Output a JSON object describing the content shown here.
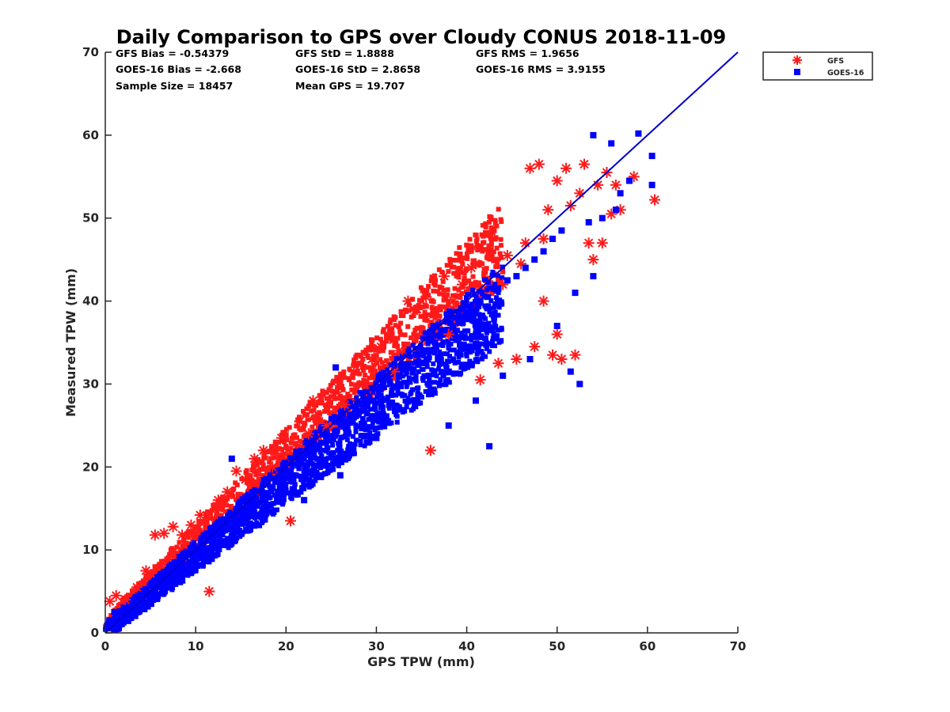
{
  "chart_data": {
    "type": "scatter",
    "title": "Daily Comparison to GPS over Cloudy CONUS 2018-11-09",
    "xlabel": "GPS TPW (mm)",
    "ylabel": "Measured TPW (mm)",
    "xlim": [
      0,
      70
    ],
    "ylim": [
      0,
      70
    ],
    "xticks": [
      0,
      10,
      20,
      30,
      40,
      50,
      60,
      70
    ],
    "yticks": [
      0,
      10,
      20,
      30,
      40,
      50,
      60,
      70
    ],
    "grid": false,
    "legend_placement": "outside-top-right",
    "stats": [
      [
        "GFS Bias = -0.54379",
        "GFS StD = 1.8888",
        "GFS RMS = 1.9656"
      ],
      [
        "GOES-16 Bias = -2.668",
        "GOES-16 StD = 2.8658",
        "GOES-16 RMS = 3.9155"
      ],
      [
        "Sample Size = 18457",
        "Mean GPS = 19.707"
      ]
    ],
    "reference_line": {
      "x": [
        0,
        70
      ],
      "y": [
        0,
        70
      ],
      "color": "#0000cc"
    },
    "series": [
      {
        "name": "GFS",
        "marker": "asterisk",
        "color": "#ff1a1a",
        "points": [
          [
            0.5,
            3.8
          ],
          [
            1.2,
            4.5
          ],
          [
            2.2,
            4.0
          ],
          [
            3.5,
            5.5
          ],
          [
            4.5,
            7.5
          ],
          [
            5.5,
            11.8
          ],
          [
            6.5,
            12.0
          ],
          [
            7.5,
            12.8
          ],
          [
            8.5,
            11.8
          ],
          [
            9.5,
            13.0
          ],
          [
            10.5,
            14.2
          ],
          [
            11.5,
            5.0
          ],
          [
            12.5,
            16.0
          ],
          [
            13.5,
            17.0
          ],
          [
            14.5,
            19.5
          ],
          [
            15.5,
            18.5
          ],
          [
            16.5,
            21.0
          ],
          [
            17.5,
            22.0
          ],
          [
            18.5,
            20.0
          ],
          [
            19.5,
            23.5
          ],
          [
            20.5,
            13.5
          ],
          [
            21.5,
            25.5
          ],
          [
            22.5,
            24.0
          ],
          [
            23.0,
            28.0
          ],
          [
            24.5,
            25.0
          ],
          [
            25.5,
            29.0
          ],
          [
            26.5,
            27.5
          ],
          [
            27.5,
            31.5
          ],
          [
            28.5,
            30.0
          ],
          [
            29.5,
            33.0
          ],
          [
            30.5,
            34.5
          ],
          [
            31.5,
            35.5
          ],
          [
            32.5,
            34.0
          ],
          [
            33.5,
            40.0
          ],
          [
            34.5,
            39.0
          ],
          [
            35.5,
            40.5
          ],
          [
            36.5,
            38.0
          ],
          [
            37.5,
            43.0
          ],
          [
            38.5,
            40.0
          ],
          [
            39.5,
            42.0
          ],
          [
            40.5,
            44.0
          ],
          [
            41.0,
            44.5
          ],
          [
            41.5,
            30.5
          ],
          [
            42.5,
            46.0
          ],
          [
            43.5,
            32.5
          ],
          [
            44.5,
            45.5
          ],
          [
            45.5,
            33.0
          ],
          [
            46.5,
            47.0
          ],
          [
            47.0,
            56.0
          ],
          [
            47.5,
            34.5
          ],
          [
            48.0,
            56.5
          ],
          [
            48.5,
            47.5
          ],
          [
            49.0,
            51.0
          ],
          [
            49.5,
            33.5
          ],
          [
            50.0,
            54.5
          ],
          [
            50.5,
            33.0
          ],
          [
            51.0,
            56.0
          ],
          [
            51.5,
            51.5
          ],
          [
            52.0,
            33.5
          ],
          [
            52.5,
            53.0
          ],
          [
            53.0,
            56.5
          ],
          [
            53.5,
            47.0
          ],
          [
            54.0,
            45.0
          ],
          [
            54.5,
            54.0
          ],
          [
            55.0,
            47.0
          ],
          [
            55.5,
            55.5
          ],
          [
            56.0,
            50.5
          ],
          [
            56.5,
            54.0
          ],
          [
            57.0,
            51.0
          ],
          [
            58.5,
            55.0
          ],
          [
            60.8,
            52.2
          ],
          [
            36.0,
            22.0
          ],
          [
            44.0,
            42.0
          ],
          [
            46.0,
            44.5
          ],
          [
            48.5,
            40.0
          ],
          [
            50.0,
            36.0
          ],
          [
            38.0,
            36.0
          ],
          [
            32.0,
            31.5
          ]
        ]
      },
      {
        "name": "GOES-16",
        "marker": "square",
        "color": "#0000ff",
        "points": [
          [
            0.5,
            1.5
          ],
          [
            1.0,
            2.5
          ],
          [
            1.5,
            2.0
          ],
          [
            2.5,
            3.0
          ],
          [
            3.5,
            3.5
          ],
          [
            4.5,
            4.5
          ],
          [
            5.5,
            5.0
          ],
          [
            6.5,
            6.0
          ],
          [
            7.5,
            7.0
          ],
          [
            8.5,
            7.5
          ],
          [
            9.5,
            8.5
          ],
          [
            10.5,
            9.5
          ],
          [
            11.5,
            11.5
          ],
          [
            12.5,
            11.0
          ],
          [
            13.5,
            12.5
          ],
          [
            14.5,
            13.5
          ],
          [
            15.5,
            14.5
          ],
          [
            16.5,
            15.5
          ],
          [
            17.5,
            16.5
          ],
          [
            18.5,
            17.5
          ],
          [
            19.5,
            18.5
          ],
          [
            20.5,
            19.5
          ],
          [
            21.5,
            20.5
          ],
          [
            22.5,
            21.5
          ],
          [
            23.5,
            22.5
          ],
          [
            24.5,
            23.5
          ],
          [
            25.5,
            32.0
          ],
          [
            25.5,
            24.0
          ],
          [
            26.5,
            25.0
          ],
          [
            27.5,
            26.0
          ],
          [
            28.5,
            27.5
          ],
          [
            29.5,
            28.0
          ],
          [
            30.5,
            29.5
          ],
          [
            31.5,
            30.0
          ],
          [
            32.5,
            31.0
          ],
          [
            33.5,
            32.0
          ],
          [
            34.5,
            33.5
          ],
          [
            35.5,
            34.0
          ],
          [
            36.5,
            35.0
          ],
          [
            37.5,
            36.5
          ],
          [
            38.5,
            37.0
          ],
          [
            39.5,
            38.0
          ],
          [
            40.5,
            39.0
          ],
          [
            41.5,
            40.0
          ],
          [
            42.5,
            22.5
          ],
          [
            43.5,
            41.5
          ],
          [
            44.5,
            42.5
          ],
          [
            45.5,
            43.0
          ],
          [
            46.5,
            44.0
          ],
          [
            47.5,
            45.0
          ],
          [
            48.5,
            46.0
          ],
          [
            49.5,
            47.5
          ],
          [
            50.5,
            48.5
          ],
          [
            51.5,
            31.5
          ],
          [
            52.5,
            30.0
          ],
          [
            53.5,
            49.5
          ],
          [
            54.0,
            60.0
          ],
          [
            55.0,
            50.0
          ],
          [
            56.0,
            59.0
          ],
          [
            56.5,
            51.0
          ],
          [
            57.0,
            53.0
          ],
          [
            58.0,
            54.5
          ],
          [
            59.0,
            60.2
          ],
          [
            60.5,
            57.5
          ],
          [
            60.5,
            54.0
          ],
          [
            38.0,
            25.0
          ],
          [
            41.0,
            28.0
          ],
          [
            44.0,
            31.0
          ],
          [
            47.0,
            33.0
          ],
          [
            50.0,
            37.0
          ],
          [
            52.0,
            41.0
          ],
          [
            54.0,
            43.0
          ],
          [
            11.0,
            11.5
          ],
          [
            14.0,
            21.0
          ],
          [
            17.0,
            13.0
          ],
          [
            22.0,
            16.0
          ],
          [
            26.0,
            19.0
          ],
          [
            30.0,
            23.5
          ]
        ]
      }
    ]
  }
}
